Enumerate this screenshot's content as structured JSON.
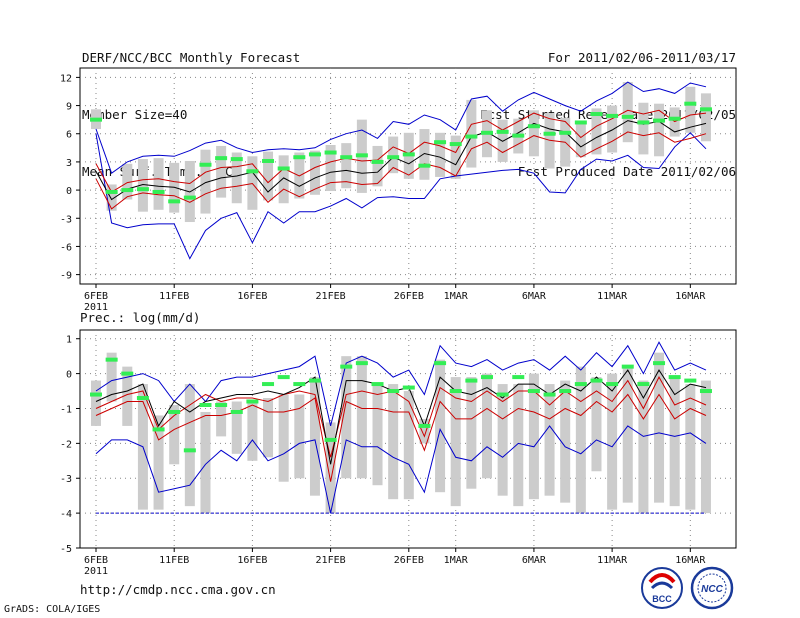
{
  "header": {
    "left": [
      "DERF/NCC/BCC Monthly Forecast",
      "Member Size=40",
      "Mean Surf. Temp.: °C"
    ],
    "right": [
      "For 2011/02/06-2011/03/17",
      "Fcst Started Refer Date 2011/02/05",
      "Fcst Produced Date 2011/02/06"
    ]
  },
  "footer": {
    "url": "http://cmdp.ncc.cma.gov.cn",
    "credit": "GrADS: COLA/IGES"
  },
  "logos": {
    "left_text": "BCC",
    "right_text": "NCC"
  },
  "colors": {
    "max_min": "#0000cc",
    "spread": "#cc0000",
    "mean": "#000000",
    "box": "#cccccc",
    "obs": "#33ee55",
    "grid": "#888888"
  },
  "chart_data": [
    {
      "type": "line",
      "title": "Mean Surf. Temp.: °C",
      "ylabel": "°C",
      "ylim": [
        -10,
        13
      ],
      "yticks": [
        12,
        9,
        6,
        3,
        0,
        -3,
        -6,
        -9
      ],
      "xticks": [
        {
          "day": 1,
          "label": "6FEB",
          "sub": "2011"
        },
        {
          "day": 6,
          "label": "11FEB"
        },
        {
          "day": 11,
          "label": "16FEB"
        },
        {
          "day": 16,
          "label": "21FEB"
        },
        {
          "day": 21,
          "label": "26FEB"
        },
        {
          "day": 24,
          "label": "1MAR"
        },
        {
          "day": 29,
          "label": "6MAR"
        },
        {
          "day": 34,
          "label": "11MAR"
        },
        {
          "day": 39,
          "label": "16MAR"
        }
      ],
      "days": 40,
      "series": [
        {
          "name": "max",
          "values": [
            6.5,
            1.8,
            3,
            3.6,
            3.7,
            3.6,
            4.2,
            5,
            5.3,
            4.5,
            4,
            4.3,
            4.4,
            4.3,
            4.5,
            5.4,
            6,
            6.4,
            5.5,
            7.3,
            7,
            8,
            7.5,
            6.4,
            9.7,
            10,
            8.4,
            9.6,
            10.4,
            9.7,
            9,
            8.4,
            9.5,
            10.3,
            11.5,
            10.5,
            10.8,
            10.3,
            11.4,
            11
          ]
        },
        {
          "name": "min",
          "values": [
            6,
            -3.5,
            -4,
            -3.7,
            -3.6,
            -3.6,
            -7.3,
            -4.3,
            -3,
            -2.4,
            -5.6,
            -2.3,
            -3.5,
            -2.3,
            -2.3,
            -1.7,
            -0.9,
            -1.9,
            -0.8,
            -0.7,
            -0.9,
            -0.9,
            1.2,
            1.5,
            1.7,
            1.9,
            2.1,
            2.2,
            1.8,
            -0.2,
            -0.3,
            2.2,
            3.3,
            3.1,
            3.7,
            2.4,
            2.3,
            4.6,
            6.1,
            4.4
          ]
        },
        {
          "name": "mean",
          "values": [
            2,
            -1,
            0.1,
            0.6,
            0.4,
            0.3,
            -0.2,
            0.8,
            1.3,
            1.5,
            1.9,
            -0.2,
            1.3,
            0.4,
            1.3,
            1.9,
            2.1,
            1.8,
            1.9,
            3.5,
            2.8,
            3.9,
            3.5,
            2.7,
            5.7,
            6.2,
            5.2,
            6.1,
            7.1,
            6.5,
            6.2,
            4.6,
            5.6,
            6.4,
            7.4,
            7,
            7.3,
            6.2,
            6.7,
            7.1
          ]
        },
        {
          "name": "upper",
          "values": [
            2.8,
            -0.2,
            0.8,
            1.1,
            1.2,
            0.9,
            0.7,
            1.9,
            2.4,
            2.5,
            2.8,
            0.8,
            2.3,
            1.5,
            2.4,
            3,
            3.4,
            3.1,
            3.2,
            4.6,
            3.9,
            5.1,
            4.7,
            4,
            7,
            7.4,
            6.4,
            7.3,
            8.2,
            7.6,
            7.3,
            5.6,
            6.8,
            7.6,
            8.5,
            8.1,
            8.5,
            7.3,
            8,
            8.2
          ]
        },
        {
          "name": "lower",
          "values": [
            1.2,
            -2,
            -0.7,
            -0.3,
            -0.5,
            -0.6,
            -1.3,
            -0.4,
            0.2,
            0.4,
            0.7,
            -1.3,
            0.1,
            -0.7,
            0.1,
            0.8,
            0.9,
            0.6,
            0.7,
            2.4,
            1.6,
            2.8,
            2.4,
            1.5,
            4.4,
            5.1,
            4,
            4.9,
            5.8,
            5.3,
            5.1,
            3.5,
            4.4,
            5.2,
            6.2,
            5.8,
            6.1,
            5.1,
            5.5,
            6
          ]
        },
        {
          "name": "obs",
          "values": [
            7.5,
            -0.2,
            0,
            0.1,
            -0.2,
            -1.2,
            -0.8,
            2.7,
            3.4,
            3.3,
            2,
            3.1,
            2.3,
            3.5,
            3.8,
            4,
            3.5,
            3.7,
            3,
            3.5,
            3.8,
            2.6,
            5.1,
            4.9,
            5.7,
            6.1,
            6.2,
            5.8,
            6.8,
            6,
            6.1,
            7.2,
            8.1,
            7.9,
            7.8,
            7.2,
            7.4,
            7.6,
            9.2,
            8.6
          ]
        },
        {
          "name": "box_low",
          "values": [
            6.5,
            -2.2,
            -1,
            -2.3,
            -2.1,
            -2.4,
            -3.4,
            -2.5,
            -0.8,
            -1.4,
            -2.1,
            -1.1,
            -1.4,
            -0.9,
            -0.5,
            -0.1,
            0.2,
            -0.3,
            0.4,
            1.8,
            1.2,
            1.1,
            1.4,
            1.2,
            2.4,
            3.5,
            3,
            3.9,
            3.6,
            2.3,
            2.5,
            3.5,
            3.8,
            4,
            5.1,
            3.8,
            3.6,
            5.7,
            6.1,
            5.2
          ]
        },
        {
          "name": "box_high",
          "values": [
            8.6,
            0.6,
            2.8,
            3.3,
            3.4,
            2.9,
            3.1,
            4.3,
            4.7,
            4,
            3.6,
            4.1,
            3.7,
            4,
            4.2,
            4.8,
            5,
            7.5,
            4.7,
            5.7,
            6.1,
            6.5,
            6.1,
            5.8,
            9.6,
            8.5,
            7.5,
            7.6,
            8.5,
            8.2,
            7.7,
            7.1,
            8.7,
            9,
            11.5,
            9.3,
            9.2,
            8.8,
            11,
            10.3
          ]
        }
      ]
    },
    {
      "type": "line",
      "title": "Prec.: log(mm/d)",
      "ylabel": "log(mm/d)",
      "ylim": [
        -5,
        1.25
      ],
      "yticks": [
        1,
        0,
        -1,
        -2,
        -3,
        -4,
        -5
      ],
      "xticks": [
        {
          "day": 1,
          "label": "6FEB",
          "sub": "2011"
        },
        {
          "day": 6,
          "label": "11FEB"
        },
        {
          "day": 11,
          "label": "16FEB"
        },
        {
          "day": 16,
          "label": "21FEB"
        },
        {
          "day": 21,
          "label": "26FEB"
        },
        {
          "day": 24,
          "label": "1MAR"
        },
        {
          "day": 29,
          "label": "6MAR"
        },
        {
          "day": 34,
          "label": "11MAR"
        },
        {
          "day": 39,
          "label": "16MAR"
        }
      ],
      "days": 40,
      "series": [
        {
          "name": "max",
          "values": [
            -0.5,
            -0.2,
            -0.1,
            0,
            -0.2,
            -0.8,
            -0.3,
            -0.8,
            -0.2,
            -0.1,
            -0.1,
            0,
            0.1,
            0.2,
            0.5,
            -1.5,
            0.3,
            0.5,
            0.3,
            -0.1,
            0.1,
            -0.6,
            0.8,
            0.3,
            0.2,
            0.4,
            0.1,
            0.3,
            0.4,
            0.1,
            0.5,
            0.1,
            0.6,
            0.2,
            0.8,
            0,
            0.9,
            0.1,
            0.3,
            0.1
          ]
        },
        {
          "name": "upper",
          "values": [
            -1,
            -0.8,
            -0.6,
            -0.5,
            -1.6,
            -1.2,
            -0.9,
            -0.6,
            -0.8,
            -0.7,
            -0.7,
            -0.8,
            -0.6,
            -0.5,
            -0.6,
            -2.4,
            -0.6,
            -0.5,
            -0.6,
            -0.5,
            -0.8,
            -1.8,
            -0.4,
            -0.7,
            -0.8,
            -0.5,
            -0.8,
            -0.5,
            -0.5,
            -0.9,
            -0.5,
            -0.8,
            -0.5,
            -0.8,
            -0.2,
            -1,
            -0.1,
            -0.9,
            -0.7,
            -0.9
          ]
        },
        {
          "name": "mean",
          "values": [
            -0.8,
            -0.6,
            -0.5,
            -0.3,
            -1.5,
            -0.8,
            -1.1,
            -0.8,
            -0.7,
            -0.6,
            -0.6,
            -0.5,
            -0.6,
            -0.4,
            -0.1,
            -2.6,
            -0.2,
            -0.2,
            -0.3,
            -0.5,
            -0.4,
            -1.5,
            -0.1,
            -0.5,
            -0.6,
            -0.4,
            -0.7,
            -0.3,
            -0.3,
            -0.6,
            -0.3,
            -0.5,
            -0.1,
            -0.5,
            0.1,
            -0.7,
            0.1,
            -0.6,
            -0.3,
            -0.4
          ]
        },
        {
          "name": "lower",
          "values": [
            -1.2,
            -1,
            -0.8,
            -0.8,
            -1.9,
            -1.6,
            -1.4,
            -1.2,
            -1.2,
            -1.1,
            -0.9,
            -1.1,
            -1.1,
            -1,
            -0.7,
            -3.1,
            -0.8,
            -1,
            -1,
            -1.1,
            -1.1,
            -2.2,
            -0.8,
            -1.3,
            -1.3,
            -1,
            -1.3,
            -1,
            -1.1,
            -1.3,
            -1,
            -1.2,
            -0.8,
            -1.1,
            -0.6,
            -1.3,
            -0.6,
            -1.3,
            -1,
            -1.2
          ]
        },
        {
          "name": "min",
          "values": [
            -2.3,
            -1.9,
            -1.9,
            -2.1,
            -3.4,
            -3.3,
            -3.2,
            -2.6,
            -2.2,
            -2.5,
            -1.9,
            -2.5,
            -2.3,
            -2,
            -1.9,
            -4,
            -1.9,
            -2.1,
            -2.1,
            -2.4,
            -2.6,
            -3.4,
            -1.6,
            -2.4,
            -2.5,
            -2.1,
            -2.4,
            -2,
            -2.1,
            -1.5,
            -2.1,
            -2.3,
            -1.9,
            -2.1,
            -1.5,
            -1.8,
            -1.7,
            -1.8,
            -1.7,
            -2
          ]
        },
        {
          "name": "floor",
          "values": [
            -4,
            -4,
            -4,
            -4,
            -4,
            -4,
            -4,
            -4,
            -4,
            -4,
            -4,
            -4,
            -4,
            -4,
            -4,
            -4,
            -4,
            -4,
            -4,
            -4,
            -4,
            -4,
            -4,
            -4,
            -4,
            -4,
            -4,
            -4,
            -4,
            -4,
            -4,
            -4,
            -4,
            -4,
            -4,
            -4,
            -4,
            -4,
            -4,
            -4
          ]
        },
        {
          "name": "obs",
          "values": [
            -0.6,
            0.4,
            0,
            -0.7,
            -1.6,
            -1.1,
            -2.2,
            -0.9,
            -0.9,
            -1.1,
            -0.8,
            -0.3,
            -0.1,
            -0.3,
            -0.2,
            -1.9,
            0.2,
            0.3,
            -0.3,
            -0.5,
            -0.4,
            -1.5,
            0.3,
            -0.5,
            -0.2,
            -0.1,
            -0.6,
            -0.1,
            -0.5,
            -0.6,
            -0.5,
            -0.3,
            -0.2,
            -0.3,
            0.2,
            -0.3,
            0.3,
            -0.1,
            -0.2,
            -0.5
          ]
        },
        {
          "name": "box_low",
          "values": [
            -1.5,
            -0.8,
            -1.5,
            -3.9,
            -3.9,
            -2.6,
            -3.8,
            -4,
            -1.8,
            -2.3,
            -2.5,
            -2.4,
            -3.1,
            -3,
            -3.5,
            -4,
            -3,
            -3,
            -3.2,
            -3.6,
            -3.6,
            -2,
            -3.4,
            -3.8,
            -3.3,
            -3,
            -3.5,
            -3.8,
            -3.6,
            -3.5,
            -3.7,
            -4,
            -2.8,
            -3.9,
            -3.7,
            -4,
            -3.7,
            -3.8,
            -3.9,
            -4
          ]
        },
        {
          "name": "box_high",
          "values": [
            -0.2,
            0.6,
            0.2,
            -0.3,
            -1.2,
            -0.9,
            -0.3,
            -1.1,
            -0.8,
            -0.8,
            -0.8,
            -0.7,
            -0.6,
            -0.6,
            -0.1,
            -1.4,
            0.5,
            0.5,
            -0.3,
            -0.3,
            -0.5,
            -1.3,
            0.4,
            -0.1,
            -0.1,
            0,
            -0.3,
            -0.3,
            0,
            -0.3,
            -0.2,
            0.2,
            -0.1,
            0,
            0.2,
            -0.2,
            0.6,
            -0.1,
            -0.3,
            -0.2
          ]
        }
      ]
    }
  ]
}
